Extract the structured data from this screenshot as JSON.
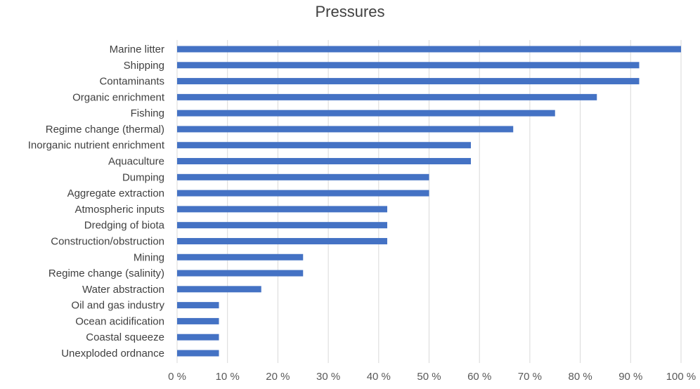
{
  "chart_data": {
    "type": "bar",
    "orientation": "horizontal",
    "title": "Pressures",
    "xlabel": "",
    "ylabel": "",
    "xlim": [
      0,
      100
    ],
    "x_ticks": [
      "0 %",
      "10 %",
      "20 %",
      "30 %",
      "40 %",
      "50 %",
      "60 %",
      "70 %",
      "80 %",
      "90 %",
      "100 %"
    ],
    "grid": "vertical",
    "legend": "none",
    "bar_color": "#4472c4",
    "categories": [
      "Marine litter",
      "Shipping",
      "Contaminants",
      "Organic enrichment",
      "Fishing",
      "Regime change (thermal)",
      "Inorganic nutrient enrichment",
      "Aquaculture",
      "Dumping",
      "Aggregate extraction",
      "Atmospheric inputs",
      "Dredging of biota",
      "Construction/obstruction",
      "Mining",
      "Regime change (salinity)",
      "Water abstraction",
      "Oil and gas industry",
      "Ocean acidification",
      "Coastal squeeze",
      "Unexploded ordnance"
    ],
    "values": [
      100,
      91.7,
      91.7,
      83.3,
      75,
      66.7,
      58.3,
      58.3,
      50,
      50,
      41.7,
      41.7,
      41.7,
      25,
      25,
      16.7,
      8.3,
      8.3,
      8.3,
      8.3
    ]
  }
}
